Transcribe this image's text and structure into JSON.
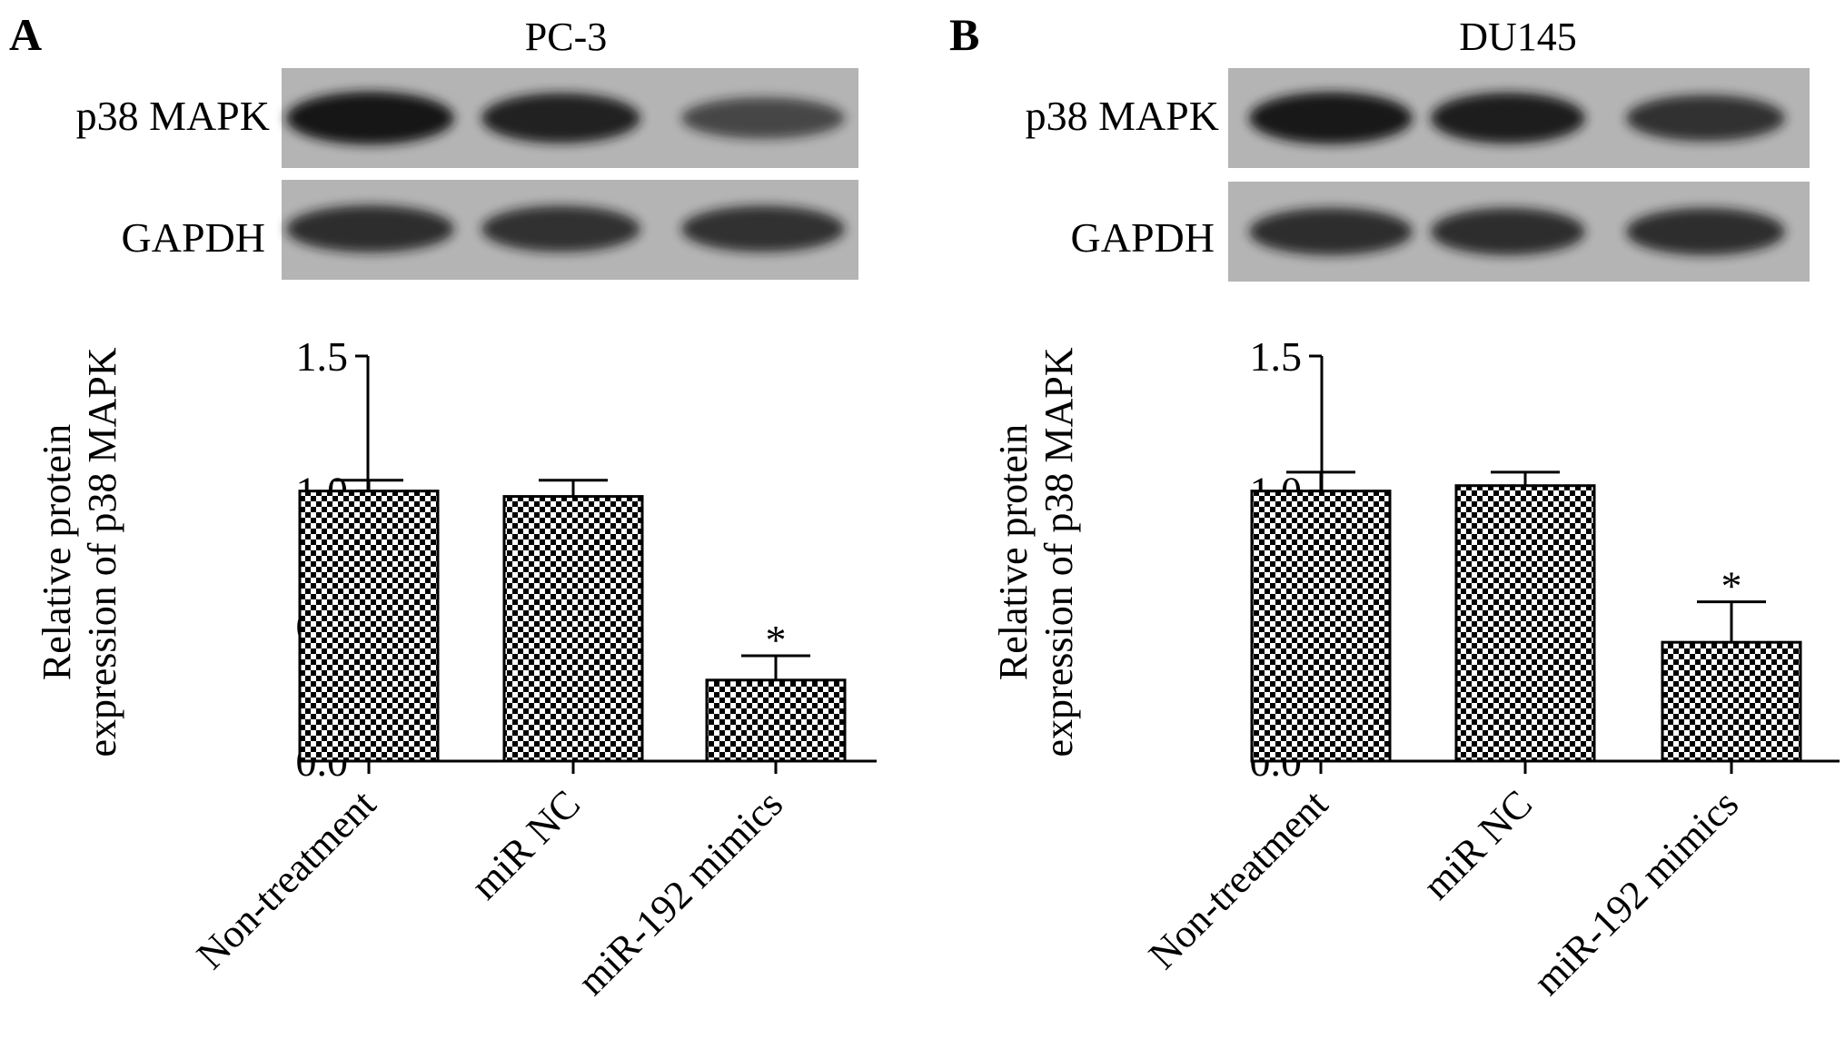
{
  "panels": [
    {
      "letter": "A",
      "cell_line": "PC-3",
      "blot_labels": [
        "p38 MAPK",
        "GAPDH"
      ],
      "band_intensity": {
        "p38 MAPK": [
          0.95,
          0.85,
          0.55
        ],
        "GAPDH": [
          0.75,
          0.72,
          0.72
        ]
      }
    },
    {
      "letter": "B",
      "cell_line": "DU145",
      "blot_labels": [
        "p38 MAPK",
        "GAPDH"
      ],
      "band_intensity": {
        "p38 MAPK": [
          0.92,
          0.88,
          0.72
        ],
        "GAPDH": [
          0.75,
          0.75,
          0.75
        ]
      }
    }
  ],
  "colors": {
    "blot_background": "#b4b4b4",
    "band": "#141414",
    "bar_dark": "#000000",
    "bar_light": "#ffffff"
  },
  "chart_data": [
    {
      "type": "bar",
      "categories": [
        "Non-treatment",
        "miR NC",
        "miR-192 mimics"
      ],
      "values": [
        1.0,
        0.98,
        0.3
      ],
      "errors": [
        0.04,
        0.06,
        0.09
      ],
      "significance": [
        "",
        "",
        "*"
      ],
      "ylabel_line1": "Relative protein",
      "ylabel_line2": "expression of p38 MAPK",
      "ylim": [
        0,
        1.5
      ],
      "yticks": [
        "0.0",
        "0.5",
        "1.0",
        "1.5"
      ],
      "fill": "checkerboard"
    },
    {
      "type": "bar",
      "categories": [
        "Non-treatment",
        "miR NC",
        "miR-192 mimics"
      ],
      "values": [
        1.0,
        1.02,
        0.44
      ],
      "errors": [
        0.07,
        0.05,
        0.15
      ],
      "significance": [
        "",
        "",
        "*"
      ],
      "ylabel_line1": "Relative protein",
      "ylabel_line2": "expression of p38 MAPK",
      "ylim": [
        0,
        1.5
      ],
      "yticks": [
        "0.0",
        "0.5",
        "1.0",
        "1.5"
      ],
      "fill": "checkerboard"
    }
  ]
}
